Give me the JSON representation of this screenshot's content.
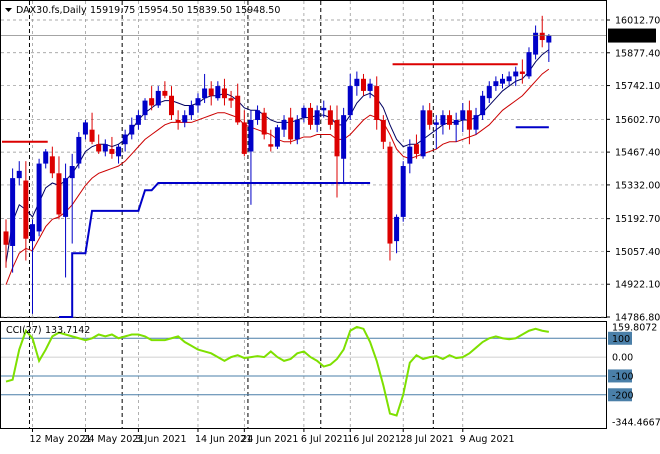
{
  "header": {
    "symbol": "DAX30.fs,Daily",
    "ohlc": "15919.75 15954.50 15839.50 15948.50"
  },
  "cci_header": {
    "label": "CCI(27)",
    "value": "133.7142"
  },
  "colors": {
    "bull": "#0000c8",
    "bear": "#dc0000",
    "price_ma": "#000060",
    "lower_ma": "#cc0000",
    "support_line": "#0000c8",
    "resistance_line": "#dc0000",
    "cci_line": "#7ee000",
    "cci_levels": "#4a7fa8",
    "current_price_bg": "#000000",
    "current_price_fg": "#ffffff"
  },
  "chart_data": [
    {
      "type": "candlestick",
      "instrument": "DAX30.fs",
      "timeframe": "Daily",
      "ylim": [
        14786.8,
        16070
      ],
      "y_ticks": [
        "16012.70",
        "15877.40",
        "15742.10",
        "15602.70",
        "15467.40",
        "15332.00",
        "15192.70",
        "15057.40",
        "14922.10",
        "14786.80"
      ],
      "x_ticks": [
        "12 May 2021",
        "24 May 2021",
        "3 Jun 2021",
        "14 Jun 2021",
        "24 Jun 2021",
        "6 Jul 2021",
        "16 Jul 2021",
        "28 Jul 2021",
        "9 Aug 2021"
      ],
      "current_price": "15948.50",
      "candles": [
        {
          "date": "2021-05-06",
          "o": 15140,
          "h": 15190,
          "l": 14990,
          "c": 15085
        },
        {
          "date": "2021-05-07",
          "o": 15080,
          "h": 15400,
          "l": 14970,
          "c": 15360
        },
        {
          "date": "2021-05-10",
          "o": 15360,
          "h": 15430,
          "l": 15330,
          "c": 15390
        },
        {
          "date": "2021-05-11",
          "o": 15350,
          "h": 15430,
          "l": 15020,
          "c": 15110
        },
        {
          "date": "2021-05-12",
          "o": 15100,
          "h": 15190,
          "l": 14800,
          "c": 15170
        },
        {
          "date": "2021-05-13",
          "o": 15140,
          "h": 15440,
          "l": 15120,
          "c": 15420
        },
        {
          "date": "2021-05-14",
          "o": 15420,
          "h": 15480,
          "l": 15400,
          "c": 15470
        },
        {
          "date": "2021-05-17",
          "o": 15450,
          "h": 15490,
          "l": 15360,
          "c": 15380
        },
        {
          "date": "2021-05-18",
          "o": 15380,
          "h": 15450,
          "l": 15190,
          "c": 15210
        },
        {
          "date": "2021-05-19",
          "o": 15200,
          "h": 15420,
          "l": 14950,
          "c": 15360
        },
        {
          "date": "2021-05-20",
          "o": 15360,
          "h": 15460,
          "l": 15090,
          "c": 15410
        },
        {
          "date": "2021-05-21",
          "o": 15420,
          "h": 15550,
          "l": 15400,
          "c": 15530
        },
        {
          "date": "2021-05-24",
          "o": 15540,
          "h": 15600,
          "l": 15520,
          "c": 15590
        },
        {
          "date": "2021-05-25",
          "o": 15560,
          "h": 15630,
          "l": 15500,
          "c": 15510
        },
        {
          "date": "2021-05-26",
          "o": 15500,
          "h": 15540,
          "l": 15460,
          "c": 15470
        },
        {
          "date": "2021-05-27",
          "o": 15470,
          "h": 15520,
          "l": 15450,
          "c": 15500
        },
        {
          "date": "2021-05-28",
          "o": 15480,
          "h": 15530,
          "l": 15440,
          "c": 15460
        },
        {
          "date": "2021-05-31",
          "o": 15450,
          "h": 15500,
          "l": 15420,
          "c": 15490
        },
        {
          "date": "2021-06-01",
          "o": 15500,
          "h": 15560,
          "l": 15470,
          "c": 15540
        },
        {
          "date": "2021-06-02",
          "o": 15540,
          "h": 15610,
          "l": 15520,
          "c": 15580
        },
        {
          "date": "2021-06-03",
          "o": 15580,
          "h": 15640,
          "l": 15560,
          "c": 15620
        },
        {
          "date": "2021-06-04",
          "o": 15620,
          "h": 15690,
          "l": 15600,
          "c": 15680
        },
        {
          "date": "2021-06-07",
          "o": 15690,
          "h": 15740,
          "l": 15640,
          "c": 15660
        },
        {
          "date": "2021-06-08",
          "o": 15660,
          "h": 15740,
          "l": 15650,
          "c": 15720
        },
        {
          "date": "2021-06-09",
          "o": 15720,
          "h": 15760,
          "l": 15690,
          "c": 15700
        },
        {
          "date": "2021-06-10",
          "o": 15700,
          "h": 15740,
          "l": 15600,
          "c": 15620
        },
        {
          "date": "2021-06-11",
          "o": 15600,
          "h": 15640,
          "l": 15560,
          "c": 15590
        },
        {
          "date": "2021-06-14",
          "o": 15590,
          "h": 15640,
          "l": 15570,
          "c": 15620
        },
        {
          "date": "2021-06-15",
          "o": 15620,
          "h": 15680,
          "l": 15600,
          "c": 15660
        },
        {
          "date": "2021-06-16",
          "o": 15660,
          "h": 15710,
          "l": 15630,
          "c": 15690
        },
        {
          "date": "2021-06-17",
          "o": 15690,
          "h": 15790,
          "l": 15670,
          "c": 15730
        },
        {
          "date": "2021-06-18",
          "o": 15730,
          "h": 15760,
          "l": 15660,
          "c": 15700
        },
        {
          "date": "2021-06-21",
          "o": 15690,
          "h": 15760,
          "l": 15680,
          "c": 15740
        },
        {
          "date": "2021-06-22",
          "o": 15730,
          "h": 15770,
          "l": 15660,
          "c": 15690
        },
        {
          "date": "2021-06-23",
          "o": 15690,
          "h": 15720,
          "l": 15650,
          "c": 15680
        },
        {
          "date": "2021-06-24",
          "o": 15700,
          "h": 15750,
          "l": 15580,
          "c": 15590
        },
        {
          "date": "2021-06-25",
          "o": 15590,
          "h": 15640,
          "l": 15450,
          "c": 15460
        },
        {
          "date": "2021-06-28",
          "o": 15470,
          "h": 15640,
          "l": 15250,
          "c": 15600
        },
        {
          "date": "2021-06-29",
          "o": 15600,
          "h": 15660,
          "l": 15580,
          "c": 15640
        },
        {
          "date": "2021-06-30",
          "o": 15630,
          "h": 15650,
          "l": 15520,
          "c": 15540
        },
        {
          "date": "2021-07-01",
          "o": 15500,
          "h": 15560,
          "l": 15470,
          "c": 15490
        },
        {
          "date": "2021-07-02",
          "o": 15490,
          "h": 15580,
          "l": 15480,
          "c": 15570
        },
        {
          "date": "2021-07-05",
          "o": 15560,
          "h": 15620,
          "l": 15530,
          "c": 15600
        },
        {
          "date": "2021-07-06",
          "o": 15610,
          "h": 15650,
          "l": 15500,
          "c": 15520
        },
        {
          "date": "2021-07-07",
          "o": 15520,
          "h": 15620,
          "l": 15500,
          "c": 15600
        },
        {
          "date": "2021-07-08",
          "o": 15610,
          "h": 15660,
          "l": 15590,
          "c": 15650
        },
        {
          "date": "2021-07-09",
          "o": 15650,
          "h": 15670,
          "l": 15560,
          "c": 15580
        },
        {
          "date": "2021-07-12",
          "o": 15580,
          "h": 15660,
          "l": 15550,
          "c": 15640
        },
        {
          "date": "2021-07-13",
          "o": 15640,
          "h": 15680,
          "l": 15610,
          "c": 15650
        },
        {
          "date": "2021-07-14",
          "o": 15640,
          "h": 15660,
          "l": 15560,
          "c": 15580
        },
        {
          "date": "2021-07-15",
          "o": 15600,
          "h": 15660,
          "l": 15280,
          "c": 15450
        },
        {
          "date": "2021-07-16",
          "o": 15440,
          "h": 15650,
          "l": 15340,
          "c": 15620
        },
        {
          "date": "2021-07-19",
          "o": 15620,
          "h": 15790,
          "l": 15600,
          "c": 15740
        },
        {
          "date": "2021-07-20",
          "o": 15740,
          "h": 15800,
          "l": 15700,
          "c": 15770
        },
        {
          "date": "2021-07-21",
          "o": 15770,
          "h": 15790,
          "l": 15700,
          "c": 15720
        },
        {
          "date": "2021-07-22",
          "o": 15720,
          "h": 15770,
          "l": 15690,
          "c": 15750
        },
        {
          "date": "2021-07-23",
          "o": 15740,
          "h": 15780,
          "l": 15560,
          "c": 15600
        },
        {
          "date": "2021-07-26",
          "o": 15600,
          "h": 15620,
          "l": 15480,
          "c": 15510
        },
        {
          "date": "2021-07-27",
          "o": 15490,
          "h": 15510,
          "l": 15020,
          "c": 15090
        },
        {
          "date": "2021-07-28",
          "o": 15100,
          "h": 15210,
          "l": 15050,
          "c": 15200
        },
        {
          "date": "2021-07-29",
          "o": 15200,
          "h": 15430,
          "l": 15180,
          "c": 15410
        },
        {
          "date": "2021-07-30",
          "o": 15420,
          "h": 15520,
          "l": 15380,
          "c": 15490
        },
        {
          "date": "2021-08-02",
          "o": 15500,
          "h": 15540,
          "l": 15440,
          "c": 15460
        },
        {
          "date": "2021-08-03",
          "o": 15450,
          "h": 15660,
          "l": 15440,
          "c": 15640
        },
        {
          "date": "2021-08-04",
          "o": 15640,
          "h": 15670,
          "l": 15560,
          "c": 15580
        },
        {
          "date": "2021-08-05",
          "o": 15580,
          "h": 15620,
          "l": 15480,
          "c": 15590
        },
        {
          "date": "2021-08-06",
          "o": 15580,
          "h": 15640,
          "l": 15540,
          "c": 15620
        },
        {
          "date": "2021-08-09",
          "o": 15620,
          "h": 15640,
          "l": 15560,
          "c": 15580
        },
        {
          "date": "2021-08-10",
          "o": 15580,
          "h": 15630,
          "l": 15510,
          "c": 15600
        },
        {
          "date": "2021-08-11",
          "o": 15600,
          "h": 15670,
          "l": 15550,
          "c": 15640
        },
        {
          "date": "2021-08-12",
          "o": 15640,
          "h": 15680,
          "l": 15500,
          "c": 15560
        },
        {
          "date": "2021-08-13",
          "o": 15560,
          "h": 15650,
          "l": 15540,
          "c": 15620
        },
        {
          "date": "2021-08-16",
          "o": 15620,
          "h": 15720,
          "l": 15600,
          "c": 15700
        },
        {
          "date": "2021-08-17",
          "o": 15690,
          "h": 15760,
          "l": 15670,
          "c": 15740
        },
        {
          "date": "2021-08-18",
          "o": 15740,
          "h": 15780,
          "l": 15720,
          "c": 15760
        },
        {
          "date": "2021-08-19",
          "o": 15750,
          "h": 15790,
          "l": 15730,
          "c": 15770
        },
        {
          "date": "2021-08-20",
          "o": 15760,
          "h": 15800,
          "l": 15740,
          "c": 15780
        },
        {
          "date": "2021-08-23",
          "o": 15780,
          "h": 15820,
          "l": 15740,
          "c": 15800
        },
        {
          "date": "2021-08-24",
          "o": 15800,
          "h": 15850,
          "l": 15750,
          "c": 15790
        },
        {
          "date": "2021-08-25",
          "o": 15780,
          "h": 15900,
          "l": 15770,
          "c": 15880
        },
        {
          "date": "2021-08-26",
          "o": 15870,
          "h": 15990,
          "l": 15850,
          "c": 15960
        },
        {
          "date": "2021-08-27",
          "o": 15960,
          "h": 16030,
          "l": 15900,
          "c": 15930
        },
        {
          "date": "2021-08-30",
          "o": 15919.75,
          "h": 15954.5,
          "l": 15839.5,
          "c": 15948.5
        }
      ],
      "upper_ma": [
        15010,
        15180,
        15250,
        15230,
        15200,
        15260,
        15320,
        15340,
        15330,
        15350,
        15380,
        15420,
        15470,
        15490,
        15500,
        15500,
        15490,
        15500,
        15520,
        15560,
        15600,
        15630,
        15650,
        15670,
        15680,
        15680,
        15670,
        15660,
        15660,
        15670,
        15690,
        15700,
        15700,
        15710,
        15700,
        15680,
        15650,
        15640,
        15640,
        15620,
        15600,
        15590,
        15590,
        15590,
        15600,
        15610,
        15610,
        15620,
        15620,
        15610,
        15580,
        15580,
        15620,
        15670,
        15700,
        15710,
        15690,
        15650,
        15580,
        15520,
        15490,
        15500,
        15500,
        15520,
        15540,
        15560,
        15580,
        15590,
        15590,
        15600,
        15600,
        15610,
        15630,
        15660,
        15690,
        15720,
        15740,
        15760,
        15770,
        15800,
        15840,
        15870,
        15890
      ],
      "lower_ma": [
        14920,
        14990,
        15050,
        15070,
        15060,
        15110,
        15160,
        15190,
        15200,
        15220,
        15250,
        15290,
        15330,
        15360,
        15380,
        15390,
        15400,
        15410,
        15430,
        15460,
        15490,
        15520,
        15540,
        15560,
        15580,
        15590,
        15590,
        15590,
        15590,
        15600,
        15610,
        15620,
        15630,
        15630,
        15620,
        15610,
        15580,
        15570,
        15560,
        15550,
        15540,
        15520,
        15510,
        15510,
        15520,
        15530,
        15530,
        15540,
        15540,
        15540,
        15520,
        15520,
        15540,
        15570,
        15600,
        15620,
        15610,
        15590,
        15540,
        15480,
        15450,
        15440,
        15450,
        15460,
        15470,
        15480,
        15500,
        15510,
        15510,
        15520,
        15530,
        15540,
        15560,
        15580,
        15610,
        15640,
        15660,
        15680,
        15700,
        15730,
        15760,
        15790,
        15810
      ],
      "support_steps": [
        {
          "from": "2021-05-18",
          "to": "2021-05-20",
          "y": 14786.8
        },
        {
          "from": "2021-05-20",
          "to": "2021-05-24",
          "y": 15050
        },
        {
          "from": "2021-05-25",
          "to": "2021-06-03",
          "y": 15225
        },
        {
          "from": "2021-06-04",
          "to": "2021-06-07",
          "y": 15310
        },
        {
          "from": "2021-06-08",
          "to": "2021-07-22",
          "y": 15340
        },
        {
          "from": "2021-08-23",
          "to": "2021-08-30",
          "y": 15570
        }
      ],
      "resistance_lines": [
        {
          "from": "2021-05-06",
          "to": "2021-05-14",
          "y": 15510
        },
        {
          "from": "2021-07-28",
          "to": "2021-08-23",
          "y": 15830
        }
      ],
      "vertical_markers": [
        "2021-05-12",
        "2021-06-01",
        "2021-06-28",
        "2021-07-13",
        "2021-08-05"
      ]
    },
    {
      "type": "line",
      "name": "CCI(27)",
      "ylim": [
        -344.4667,
        159.8072
      ],
      "y_ticks": [
        "159.8072",
        "100",
        "0.00",
        "-100",
        "-200",
        "-344.4667"
      ],
      "levels": [
        100,
        -100,
        -200
      ],
      "values": [
        -130,
        -120,
        40,
        140,
        100,
        -20,
        40,
        110,
        130,
        120,
        110,
        100,
        90,
        100,
        120,
        110,
        120,
        100,
        110,
        120,
        120,
        110,
        90,
        90,
        90,
        100,
        110,
        80,
        60,
        40,
        30,
        20,
        0,
        -20,
        0,
        10,
        -5,
        0,
        5,
        0,
        30,
        0,
        -20,
        -10,
        20,
        30,
        0,
        -20,
        -50,
        -40,
        -10,
        40,
        140,
        160,
        150,
        80,
        -20,
        -150,
        -300,
        -310,
        -200,
        -30,
        10,
        -10,
        0,
        5,
        -10,
        10,
        -5,
        0,
        20,
        50,
        80,
        100,
        110,
        100,
        95,
        100,
        120,
        140,
        150,
        140,
        133.7142
      ]
    }
  ]
}
